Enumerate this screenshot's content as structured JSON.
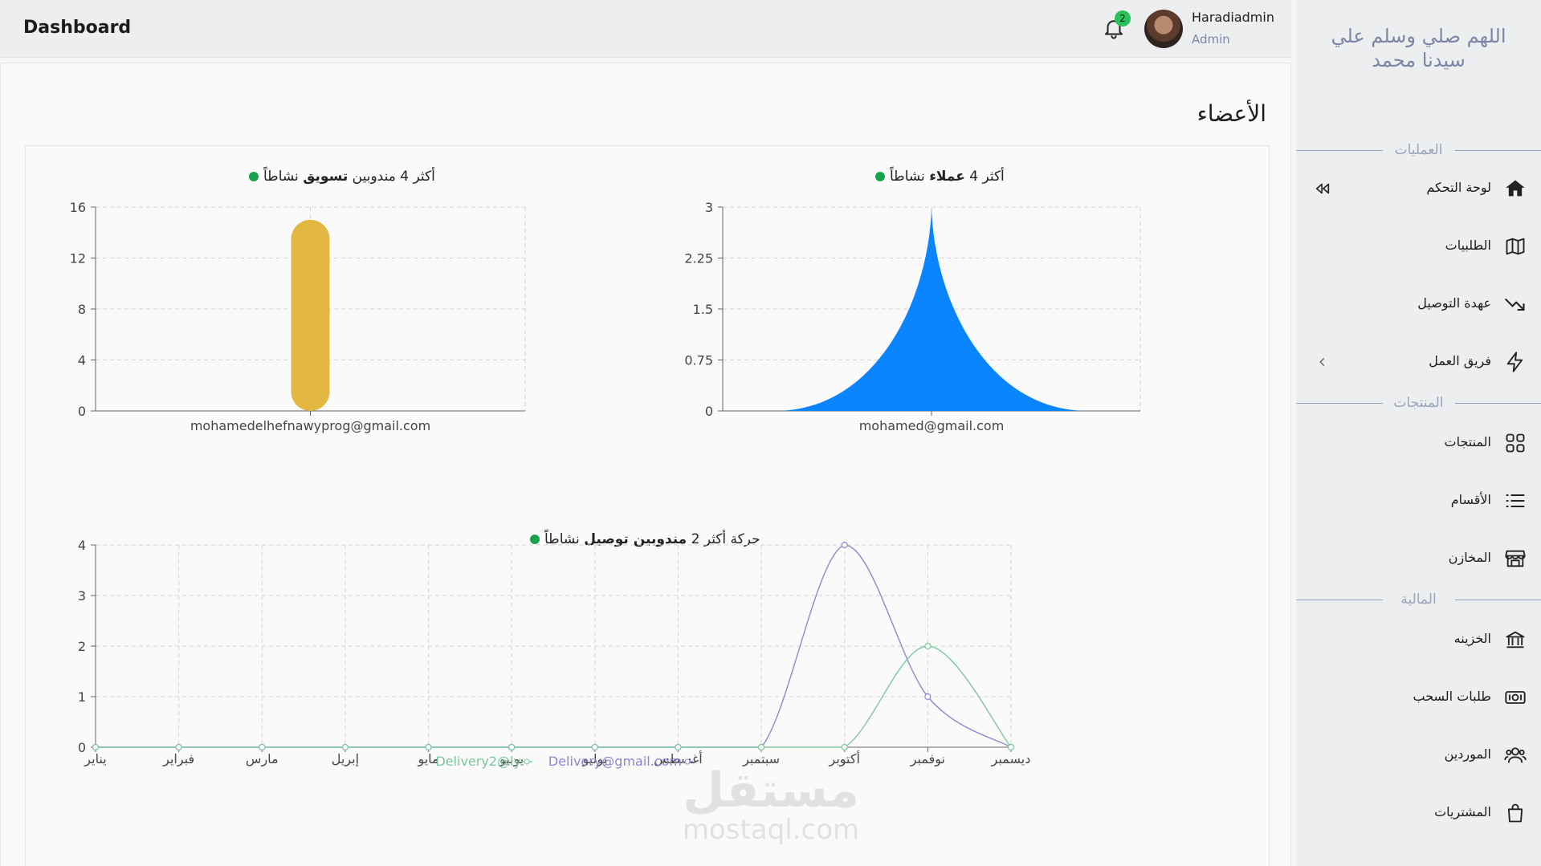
{
  "topbar": {
    "title": "Dashboard",
    "notifications_count": "2",
    "user_name": "Haradiadmin",
    "user_role": "Admin"
  },
  "main": {
    "section_title": "الأعضاء"
  },
  "sidebar": {
    "dua_line1": "اللهم صلي وسلم علي",
    "dua_line2": "سيدنا محمد",
    "sections": [
      {
        "label": "العمليات"
      },
      {
        "label": "المنتجات"
      },
      {
        "label": "المالية"
      }
    ],
    "items": [
      {
        "label": "لوحة التحكم",
        "icon": "home-icon"
      },
      {
        "label": "الطلبيات",
        "icon": "map-icon"
      },
      {
        "label": "عهدة التوصيل",
        "icon": "trend-down-icon"
      },
      {
        "label": "فريق العمل",
        "icon": "bolt-icon"
      },
      {
        "label": "المنتجات",
        "icon": "grid-icon"
      },
      {
        "label": "الأقسام",
        "icon": "list-icon"
      },
      {
        "label": "المخازن",
        "icon": "store-icon"
      },
      {
        "label": "الخزينه",
        "icon": "bank-icon"
      },
      {
        "label": "طلبات السحب",
        "icon": "cash-icon"
      },
      {
        "label": "الموردين",
        "icon": "users-icon"
      },
      {
        "label": "المشتريات",
        "icon": "bag-icon"
      }
    ]
  },
  "watermark": {
    "line1": "مستقل",
    "line2": "mostaql.com"
  },
  "chart_data": [
    {
      "type": "area",
      "title_pre": "أكثر 4",
      "title_bold": "عملاء",
      "title_post": "نشاطاً",
      "categories": [
        "mohamed@gmail.com"
      ],
      "values": [
        3
      ],
      "yticks": [
        "0",
        "0.75",
        "1.5",
        "2.25",
        "3"
      ],
      "ylim": [
        0,
        3
      ],
      "color": "#0a84ff"
    },
    {
      "type": "bar",
      "title_pre": "أكثر 4 مندوبين",
      "title_bold": "تسويق",
      "title_post": "نشاطاً",
      "categories": [
        "mohamedelhefnawyprog@gmail.com"
      ],
      "values": [
        15
      ],
      "yticks": [
        "0",
        "4",
        "8",
        "12",
        "16"
      ],
      "ylim": [
        0,
        16
      ],
      "color": "#e2b843"
    },
    {
      "type": "line",
      "title_pre": "حركة أكثر 2",
      "title_bold": "مندوبين توصيل",
      "title_post": "نشاطاً",
      "categories": [
        "يناير",
        "فبراير",
        "مارس",
        "إبريل",
        "مايو",
        "يونيو",
        "يوليو",
        "أغسطس",
        "سبتمبر",
        "أكتوبر",
        "نوفمبر",
        "ديسمبر"
      ],
      "yticks": [
        "0",
        "1",
        "2",
        "3",
        "4"
      ],
      "ylim": [
        0,
        4
      ],
      "series": [
        {
          "name": "Delivery@gmail.com",
          "values": [
            0,
            0,
            0,
            0,
            0,
            0,
            0,
            0,
            0,
            4,
            1,
            0
          ],
          "color": "#8c88d2"
        },
        {
          "name": "Delivery2@ly",
          "values": [
            0,
            0,
            0,
            0,
            0,
            0,
            0,
            0,
            0,
            0,
            2,
            0
          ],
          "color": "#7cc7a0"
        }
      ]
    }
  ]
}
